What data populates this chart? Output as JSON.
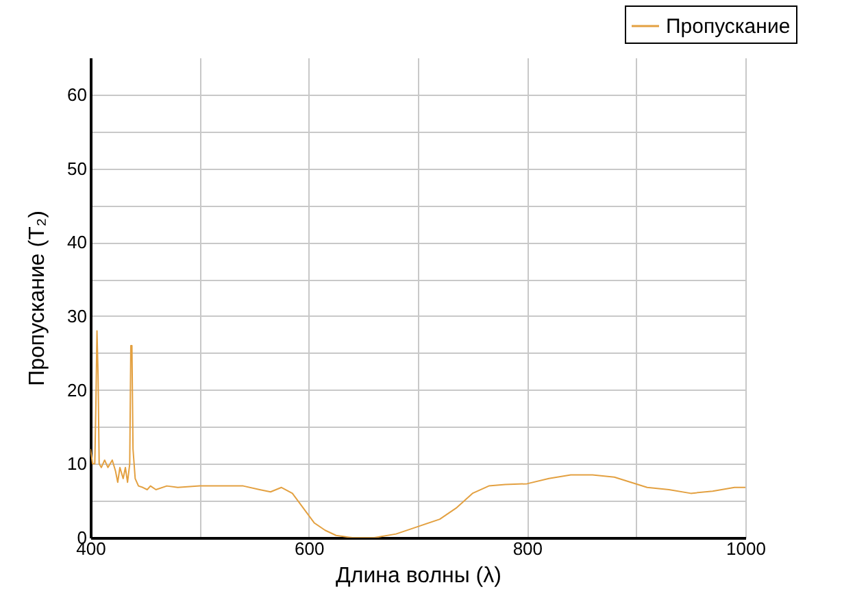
{
  "chart_data": {
    "type": "line",
    "xlabel": "Длина волны (λ)",
    "ylabel": "Пропускание (T₂)",
    "xlim": [
      400,
      1000
    ],
    "ylim": [
      0,
      65
    ],
    "xticks": [
      400,
      {
        "value": 500,
        "label": null
      },
      600,
      {
        "value": 700,
        "label": null
      },
      800,
      {
        "value": 900,
        "label": null
      },
      1000
    ],
    "yticks": [
      0,
      {
        "value": 5,
        "label": null
      },
      10,
      {
        "value": 15,
        "label": null
      },
      20,
      {
        "value": 25,
        "label": null
      },
      30,
      {
        "value": 35,
        "label": null
      },
      40,
      {
        "value": 45,
        "label": null
      },
      50,
      {
        "value": 55,
        "label": null
      },
      60
    ],
    "grid": true,
    "legend": "top right",
    "marker": "none",
    "line_style": "solid",
    "x": [
      400,
      402,
      404,
      405,
      406,
      407,
      408,
      410,
      413,
      416,
      420,
      423,
      425,
      427,
      430,
      432,
      434,
      436,
      437,
      438,
      439,
      441,
      444,
      448,
      452,
      455,
      460,
      470,
      480,
      500,
      520,
      540,
      555,
      565,
      575,
      585,
      595,
      605,
      615,
      625,
      640,
      660,
      680,
      700,
      720,
      735,
      750,
      765,
      780,
      800,
      820,
      840,
      860,
      880,
      895,
      910,
      930,
      950,
      970,
      990,
      1000
    ],
    "series": [
      {
        "name": "Пропускание",
        "color": "#e3a040",
        "values": [
          12,
          10,
          10,
          18,
          28,
          22,
          10,
          9.5,
          10.5,
          9.5,
          10.5,
          9,
          7.5,
          9.5,
          8,
          9.5,
          7.5,
          10,
          26,
          26,
          12,
          8,
          7,
          6.8,
          6.5,
          7,
          6.5,
          7,
          6.8,
          7,
          7,
          7,
          6.5,
          6.2,
          6.8,
          6,
          4,
          2,
          1,
          0.3,
          0,
          0,
          0.5,
          1.5,
          2.5,
          4,
          6,
          7,
          7.2,
          7.3,
          8,
          8.5,
          8.5,
          8.2,
          7.5,
          6.8,
          6.5,
          6,
          6.3,
          6.8,
          6.8
        ]
      }
    ]
  }
}
